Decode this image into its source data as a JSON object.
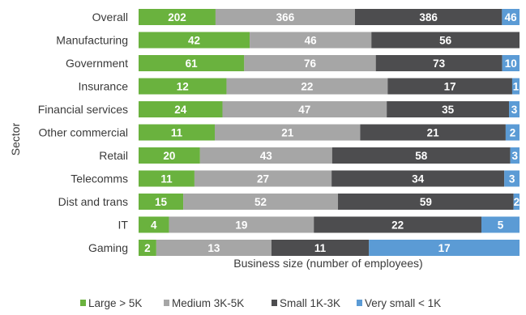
{
  "chart_data": {
    "type": "bar",
    "orientation": "horizontal",
    "stacked": "100%",
    "categories": [
      "Overall",
      "Manufacturing",
      "Government",
      "Insurance",
      "Financial services",
      "Other commercial",
      "Retail",
      "Telecomms",
      "Dist and trans",
      "IT",
      "Gaming"
    ],
    "series": [
      {
        "name": "Large > 5K",
        "color": "#6ab23e",
        "values": [
          202,
          42,
          61,
          12,
          24,
          11,
          20,
          11,
          15,
          4,
          2
        ]
      },
      {
        "name": "Medium 3K-5K",
        "color": "#a6a6a6",
        "values": [
          366,
          46,
          76,
          22,
          47,
          21,
          43,
          27,
          52,
          19,
          13
        ]
      },
      {
        "name": "Small 1K-3K",
        "color": "#4d4d4f",
        "values": [
          386,
          56,
          73,
          17,
          35,
          21,
          58,
          34,
          59,
          22,
          11
        ]
      },
      {
        "name": "Very small < 1K",
        "color": "#5b9bd5",
        "values": [
          46,
          0,
          10,
          1,
          3,
          2,
          3,
          3,
          2,
          5,
          17
        ]
      }
    ],
    "xlabel": "Business size (number of employees)",
    "ylabel": "Sector",
    "legend_position": "bottom"
  }
}
